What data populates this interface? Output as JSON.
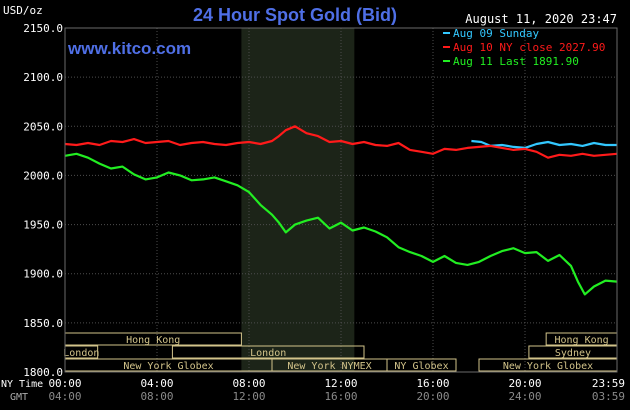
{
  "header": {
    "y_unit": "USD/oz",
    "title": "24 Hour Spot Gold (Bid)",
    "timestamp": "August 11, 2020 23:47",
    "watermark": "www.kitco.com"
  },
  "colors": {
    "background": "#000000",
    "plot_grid": "#4d4d4d",
    "axis_text": "#ffffff",
    "title": "#4f6fe6",
    "london_shade": "#1c2418",
    "session_box": "#d2c38a",
    "aug09": "#33c8ff",
    "aug10": "#ff1a1a",
    "aug11": "#22ee22"
  },
  "sessions": [
    {
      "name": "Hong Kong",
      "row": 0,
      "start": 0.0,
      "end": 7.67
    },
    {
      "name": "Hong Kong",
      "row": 0,
      "start": 20.92,
      "end": 24.0
    },
    {
      "name": "London",
      "row": 1,
      "start": 0.0,
      "end": 1.42
    },
    {
      "name": "London",
      "row": 1,
      "start": 4.67,
      "end": 13.0
    },
    {
      "name": "Sydney",
      "row": 1,
      "start": 20.17,
      "end": 24.0
    },
    {
      "name": "New York Globex",
      "row": 2,
      "start": 0.0,
      "end": 9.0
    },
    {
      "name": "New York NYMEX",
      "row": 2,
      "start": 9.0,
      "end": 14.0
    },
    {
      "name": "NY Globex",
      "row": 2,
      "start": 14.0,
      "end": 17.0
    },
    {
      "name": "New York Globex",
      "row": 2,
      "start": 18.0,
      "end": 24.0
    }
  ],
  "x_row_labels": {
    "ny": "NY Time",
    "gmt": "GMT"
  },
  "chart_data": {
    "type": "line",
    "title": "24 Hour Spot Gold (Bid)",
    "ylabel": "USD/oz",
    "ylim": [
      1800,
      2150
    ],
    "y_ticks": [
      "2150.0",
      "2100.0",
      "2050.0",
      "2000.0",
      "1950.0",
      "1900.0",
      "1850.0",
      "1800.0"
    ],
    "x_range_hours": [
      0,
      24
    ],
    "x_ticks_ny": [
      "00:00",
      "04:00",
      "08:00",
      "12:00",
      "16:00",
      "20:00",
      "23:59"
    ],
    "x_ticks_gmt": [
      "04:00",
      "08:00",
      "12:00",
      "16:00",
      "20:00",
      "24:00",
      "03:59"
    ],
    "shaded_region_hours": [
      7.67,
      12.58
    ],
    "grid": true,
    "legend_position": "top-right",
    "series": [
      {
        "name": "Aug 09 Sunday",
        "x": [
          17.67,
          18.1,
          18.5,
          19.0,
          19.5,
          20.0,
          20.5,
          21.0,
          21.5,
          22.0,
          22.5,
          23.0,
          23.5,
          24.0
        ],
        "y": [
          2035,
          2034,
          2030,
          2031,
          2029,
          2028,
          2032,
          2034,
          2031,
          2032,
          2030,
          2033,
          2031,
          2031
        ]
      },
      {
        "name": "Aug 10 NY close 2027.90",
        "x": [
          0,
          0.5,
          1,
          1.5,
          2,
          2.5,
          3,
          3.5,
          4,
          4.5,
          5,
          5.5,
          6,
          6.5,
          7,
          7.5,
          8,
          8.5,
          9,
          9.3,
          9.6,
          10,
          10.5,
          11,
          11.5,
          12,
          12.5,
          13,
          13.5,
          14,
          14.5,
          15,
          15.5,
          16,
          16.5,
          17,
          17.5,
          18,
          18.5,
          19,
          19.5,
          20,
          20.5,
          21,
          21.5,
          22,
          22.5,
          23,
          23.5,
          24
        ],
        "y": [
          2032,
          2031,
          2033,
          2031,
          2035,
          2034,
          2037,
          2033,
          2034,
          2035,
          2031,
          2033,
          2034,
          2032,
          2031,
          2033,
          2034,
          2032,
          2035,
          2040,
          2046,
          2050,
          2043,
          2040,
          2034,
          2035,
          2032,
          2034,
          2031,
          2030,
          2033,
          2026,
          2024,
          2022,
          2027,
          2026,
          2028,
          2029,
          2030,
          2028,
          2026,
          2027,
          2024,
          2018,
          2021,
          2020,
          2022,
          2020,
          2021,
          2022
        ]
      },
      {
        "name": "Aug 11 Last 1891.90",
        "x": [
          0,
          0.5,
          1,
          1.5,
          2,
          2.5,
          3,
          3.5,
          4,
          4.5,
          5,
          5.5,
          6,
          6.5,
          7,
          7.5,
          8,
          8.5,
          9,
          9.3,
          9.6,
          10,
          10.5,
          11,
          11.5,
          12,
          12.5,
          13,
          13.5,
          14,
          14.5,
          15,
          15.5,
          16,
          16.5,
          17,
          17.5,
          18,
          18.5,
          19,
          19.5,
          20,
          20.5,
          21,
          21.5,
          22,
          22.3,
          22.6,
          23,
          23.5,
          24
        ],
        "y": [
          2020,
          2022,
          2018,
          2012,
          2007,
          2009,
          2001,
          1996,
          1998,
          2003,
          2000,
          1995,
          1996,
          1998,
          1994,
          1990,
          1983,
          1970,
          1960,
          1952,
          1942,
          1950,
          1954,
          1957,
          1946,
          1952,
          1944,
          1947,
          1943,
          1937,
          1927,
          1922,
          1918,
          1912,
          1918,
          1911,
          1909,
          1912,
          1918,
          1923,
          1926,
          1921,
          1922,
          1913,
          1919,
          1908,
          1892,
          1879,
          1887,
          1893,
          1892
        ]
      }
    ]
  }
}
